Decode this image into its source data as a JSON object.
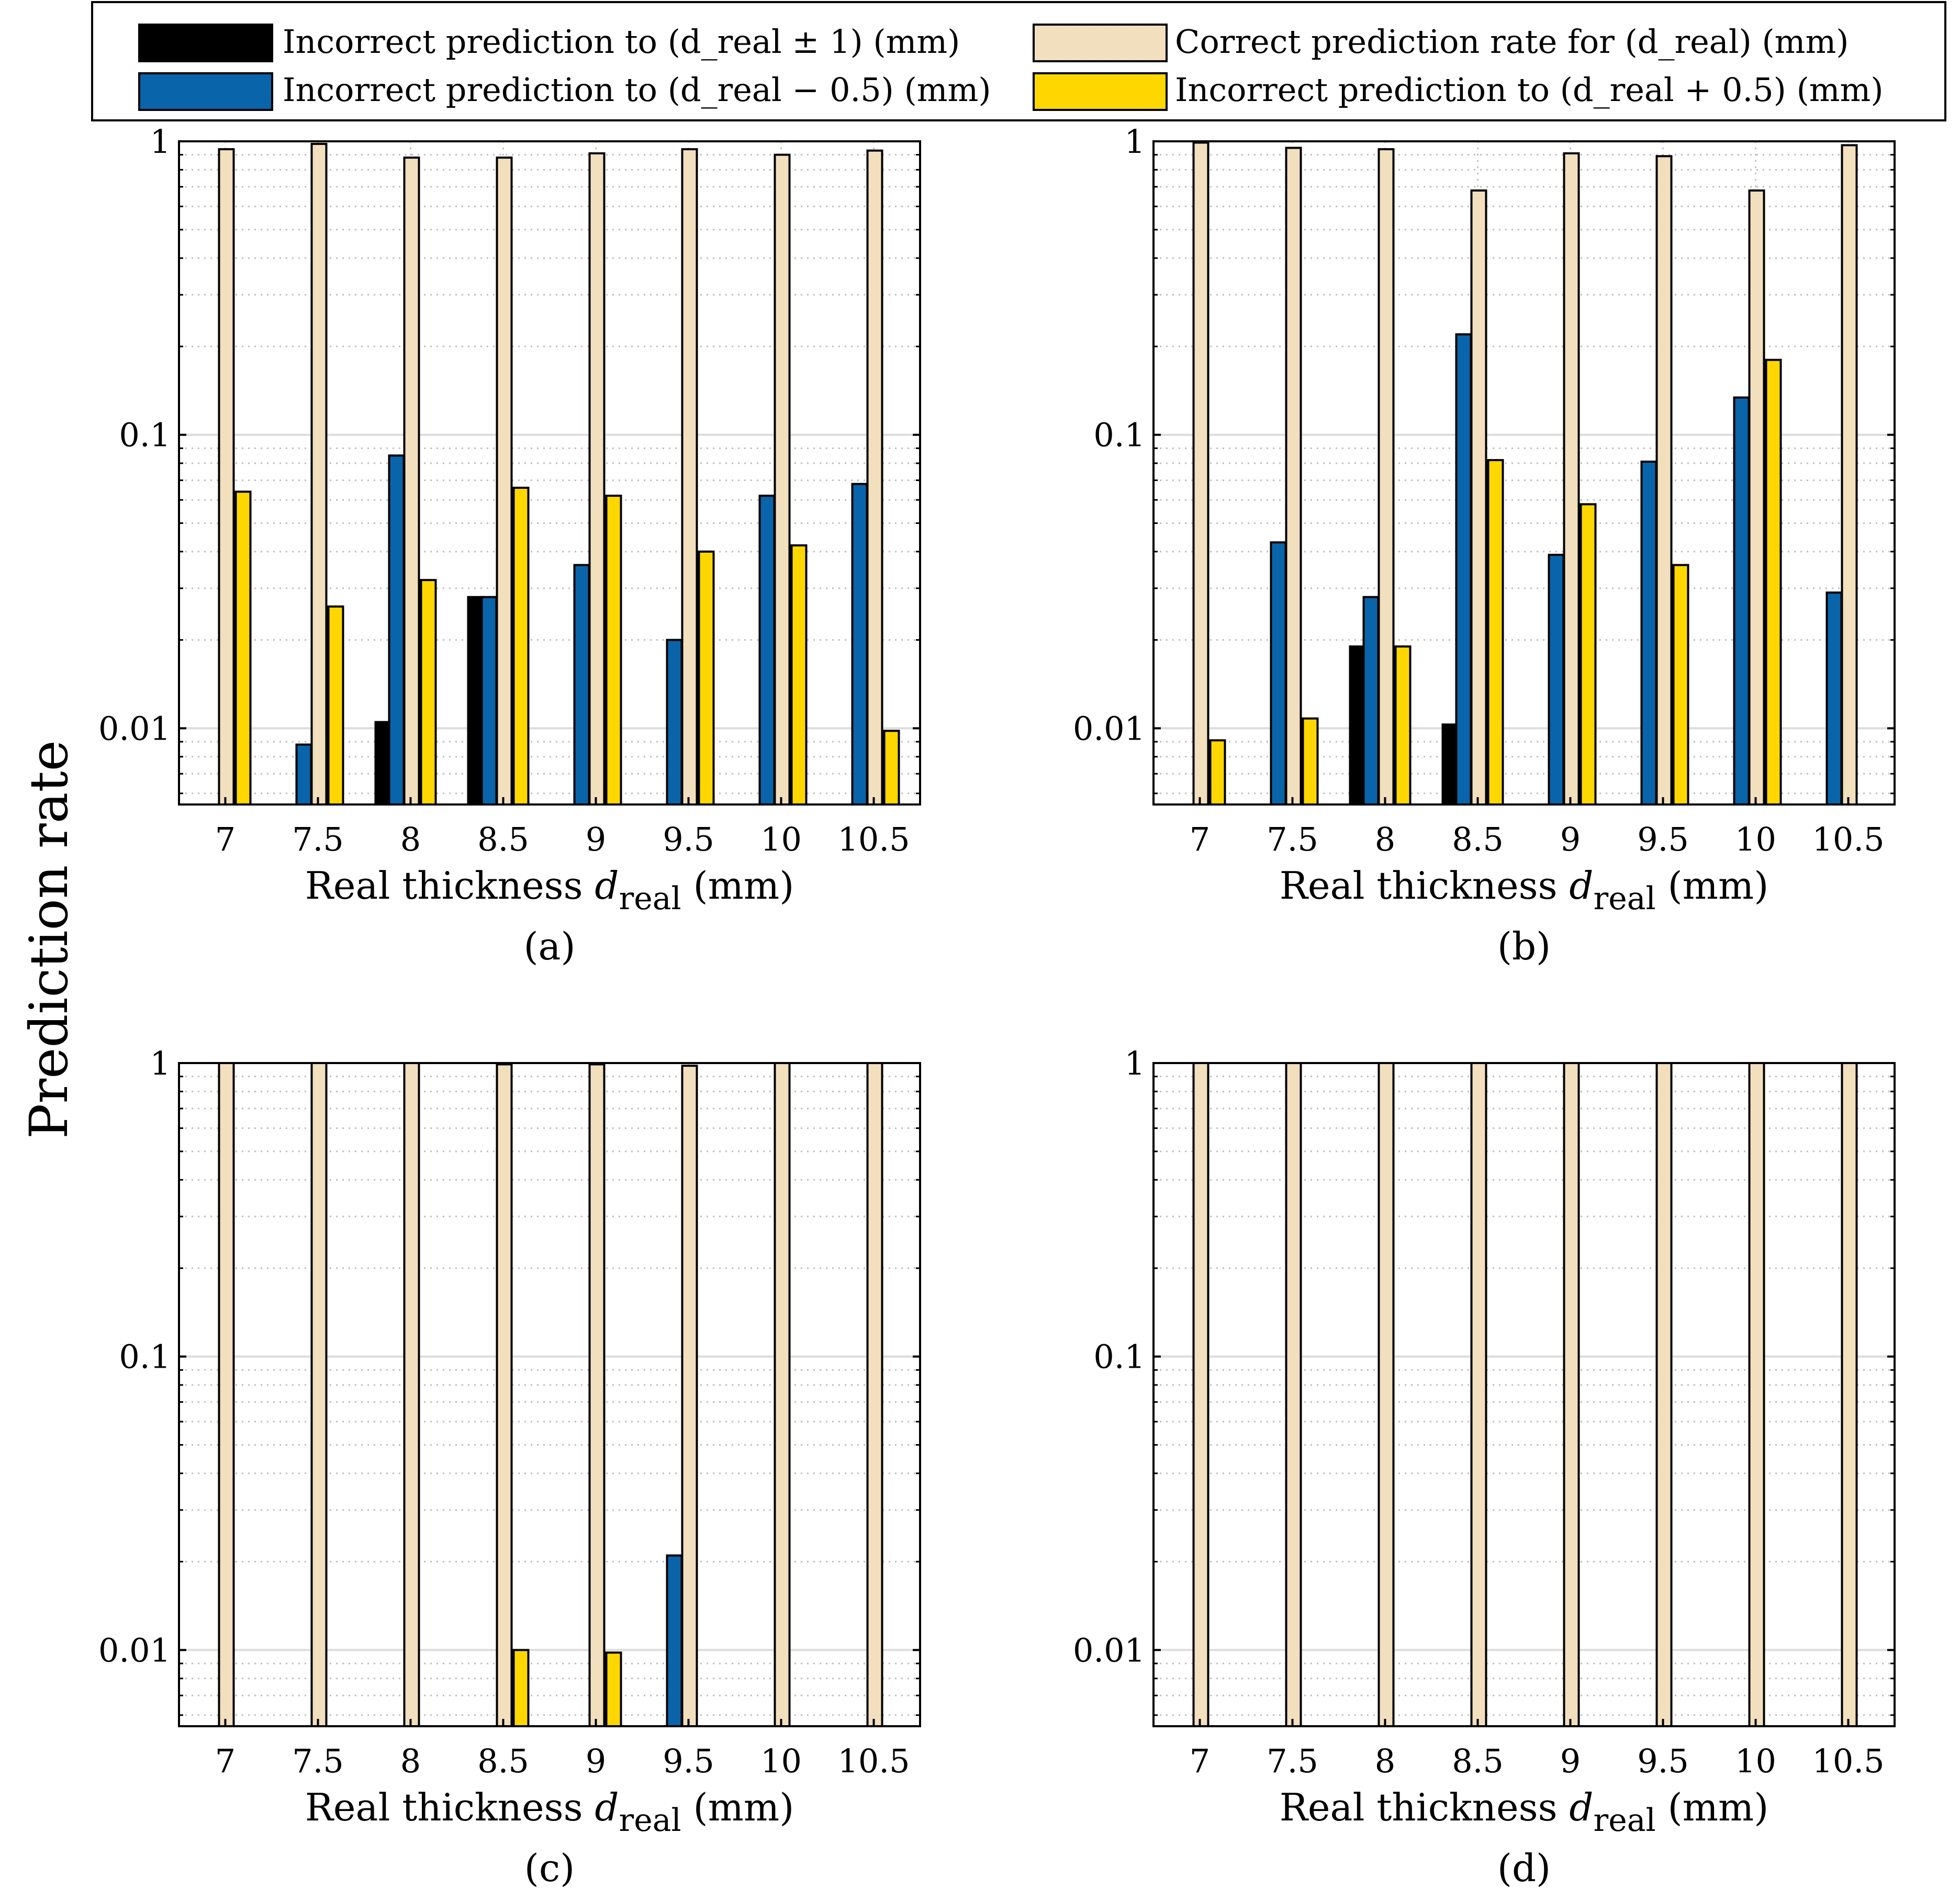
{
  "figure": {
    "ylabel": "Prediction rate",
    "xlabel_prefix": "Real thickness ",
    "xlabel_var": "d",
    "xlabel_sub": "real",
    "xlabel_unit": " (mm)"
  },
  "legend": {
    "entries": [
      {
        "key": "pm1",
        "label": "Incorrect prediction to (d_real ± 1) (mm)",
        "color": "#000000"
      },
      {
        "key": "correct",
        "label": "Correct prediction rate for (d_real) (mm)",
        "color": "#F2DFBE"
      },
      {
        "key": "minus",
        "label": "Incorrect prediction to (d_real − 0.5) (mm)",
        "color": "#0A64AA"
      },
      {
        "key": "plus",
        "label": "Incorrect prediction to (d_real + 0.5) (mm)",
        "color": "#FFD700"
      }
    ]
  },
  "chart_data": [
    {
      "type": "bar",
      "panel_label": "(a)",
      "yscale": "log",
      "ylim": [
        0.0055,
        1
      ],
      "yticks": [
        0.01,
        0.1,
        1
      ],
      "ytick_labels": [
        "0.01",
        "0.1",
        "1"
      ],
      "categories": [
        "7",
        "7.5",
        "8",
        "8.5",
        "9",
        "9.5",
        "10",
        "10.5"
      ],
      "series": [
        {
          "name": "Incorrect prediction to (d_real ± 1) (mm)",
          "key": "pm1",
          "values": [
            null,
            null,
            0.0105,
            0.028,
            null,
            null,
            null,
            null
          ]
        },
        {
          "name": "Incorrect prediction to (d_real − 0.5) (mm)",
          "key": "minus",
          "values": [
            null,
            0.0088,
            0.085,
            0.028,
            0.036,
            0.02,
            0.062,
            0.068
          ]
        },
        {
          "name": "Correct prediction rate for (d_real) (mm)",
          "key": "correct",
          "values": [
            0.94,
            0.98,
            0.88,
            0.88,
            0.91,
            0.94,
            0.9,
            0.93
          ]
        },
        {
          "name": "Incorrect prediction to (d_real + 0.5) (mm)",
          "key": "plus",
          "values": [
            0.064,
            0.026,
            0.032,
            0.066,
            0.062,
            0.04,
            0.042,
            0.0098
          ]
        }
      ]
    },
    {
      "type": "bar",
      "panel_label": "(b)",
      "yscale": "log",
      "ylim": [
        0.0055,
        1
      ],
      "yticks": [
        0.01,
        0.1,
        1
      ],
      "ytick_labels": [
        "0.01",
        "0.1",
        "1"
      ],
      "categories": [
        "7",
        "7.5",
        "8",
        "8.5",
        "9",
        "9.5",
        "10",
        "10.5"
      ],
      "series": [
        {
          "name": "Incorrect prediction to (d_real ± 1) (mm)",
          "key": "pm1",
          "values": [
            null,
            null,
            0.019,
            0.0103,
            null,
            null,
            null,
            null
          ]
        },
        {
          "name": "Incorrect prediction to (d_real − 0.5) (mm)",
          "key": "minus",
          "values": [
            null,
            0.043,
            0.028,
            0.22,
            0.039,
            0.081,
            0.134,
            0.029
          ]
        },
        {
          "name": "Correct prediction rate for (d_real) (mm)",
          "key": "correct",
          "values": [
            0.99,
            0.95,
            0.94,
            0.68,
            0.91,
            0.89,
            0.68,
            0.97
          ]
        },
        {
          "name": "Incorrect prediction to (d_real + 0.5) (mm)",
          "key": "plus",
          "values": [
            0.0091,
            0.0108,
            0.019,
            0.082,
            0.058,
            0.036,
            0.18,
            null
          ]
        }
      ]
    },
    {
      "type": "bar",
      "panel_label": "(c)",
      "yscale": "log",
      "ylim": [
        0.0055,
        1
      ],
      "yticks": [
        0.01,
        0.1,
        1
      ],
      "ytick_labels": [
        "0.01",
        "0.1",
        "1"
      ],
      "categories": [
        "7",
        "7.5",
        "8",
        "8.5",
        "9",
        "9.5",
        "10",
        "10.5"
      ],
      "series": [
        {
          "name": "Incorrect prediction to (d_real ± 1) (mm)",
          "key": "pm1",
          "values": [
            null,
            null,
            null,
            null,
            null,
            null,
            null,
            null
          ]
        },
        {
          "name": "Incorrect prediction to (d_real − 0.5) (mm)",
          "key": "minus",
          "values": [
            null,
            null,
            null,
            null,
            null,
            0.021,
            null,
            null
          ]
        },
        {
          "name": "Correct prediction rate for (d_real) (mm)",
          "key": "correct",
          "values": [
            1,
            1,
            1,
            0.99,
            0.99,
            0.979,
            1,
            1
          ]
        },
        {
          "name": "Incorrect prediction to (d_real + 0.5) (mm)",
          "key": "plus",
          "values": [
            null,
            null,
            null,
            0.01,
            0.0098,
            null,
            null,
            null
          ]
        }
      ]
    },
    {
      "type": "bar",
      "panel_label": "(d)",
      "yscale": "log",
      "ylim": [
        0.0055,
        1
      ],
      "yticks": [
        0.01,
        0.1,
        1
      ],
      "ytick_labels": [
        "0.01",
        "0.1",
        "1"
      ],
      "categories": [
        "7",
        "7.5",
        "8",
        "8.5",
        "9",
        "9.5",
        "10",
        "10.5"
      ],
      "series": [
        {
          "name": "Incorrect prediction to (d_real ± 1) (mm)",
          "key": "pm1",
          "values": [
            null,
            null,
            null,
            null,
            null,
            null,
            null,
            null
          ]
        },
        {
          "name": "Incorrect prediction to (d_real − 0.5) (mm)",
          "key": "minus",
          "values": [
            null,
            null,
            null,
            null,
            null,
            null,
            null,
            null
          ]
        },
        {
          "name": "Correct prediction rate for (d_real) (mm)",
          "key": "correct",
          "values": [
            1,
            1,
            1,
            1,
            1,
            1,
            1,
            1
          ]
        },
        {
          "name": "Incorrect prediction to (d_real + 0.5) (mm)",
          "key": "plus",
          "values": [
            null,
            null,
            null,
            null,
            null,
            null,
            null,
            null
          ]
        }
      ]
    }
  ]
}
